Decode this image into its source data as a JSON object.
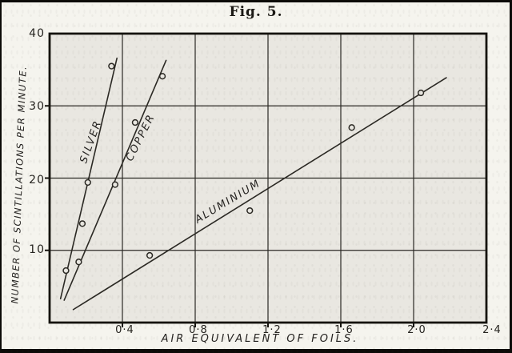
{
  "chart_data": {
    "type": "scatter",
    "title": "Fig. 5.",
    "xlabel": "AIR EQUIVALENT OF FOILS.",
    "ylabel": "NUMBER OF SCINTILLATIONS PER MINUTE.",
    "xlim": [
      0,
      2.4
    ],
    "ylim": [
      0,
      40
    ],
    "x_ticks": [
      0.4,
      0.8,
      1.2,
      1.6,
      2.0,
      2.4
    ],
    "x_tick_labels": [
      "0·4",
      "0·8",
      "1·2",
      "1·6",
      "2·0",
      "2·4"
    ],
    "y_ticks": [
      10,
      20,
      30,
      40
    ],
    "y_tick_labels": [
      "10",
      "20",
      "30",
      "40"
    ],
    "grid": true,
    "legend_position": "labels-along-curves",
    "ink_color": "#2b2924",
    "frame_color": "#15130e",
    "plot_bg": "#e9e7e1",
    "page_bg": "#f5f4ee",
    "series": [
      {
        "name": "SILVER",
        "points": [
          [
            0.09,
            7.2
          ],
          [
            0.18,
            13.7
          ],
          [
            0.21,
            19.4
          ],
          [
            0.34,
            35.5
          ]
        ],
        "fit_line": [
          [
            0.06,
            3.3
          ],
          [
            0.37,
            36.6
          ]
        ],
        "label_angle_deg": -70
      },
      {
        "name": "COPPER",
        "points": [
          [
            0.16,
            8.4
          ],
          [
            0.36,
            19.1
          ],
          [
            0.47,
            27.7
          ],
          [
            0.62,
            34.1
          ]
        ],
        "fit_line": [
          [
            0.08,
            3.1
          ],
          [
            0.64,
            36.3
          ]
        ],
        "label_angle_deg": -63
      },
      {
        "name": "ALUMINIUM",
        "points": [
          [
            0.55,
            9.3
          ],
          [
            1.1,
            15.5
          ],
          [
            1.66,
            27.0
          ],
          [
            2.04,
            31.8
          ]
        ],
        "fit_line": [
          [
            0.13,
            1.8
          ],
          [
            2.18,
            33.9
          ]
        ],
        "label_angle_deg": -31
      }
    ]
  }
}
